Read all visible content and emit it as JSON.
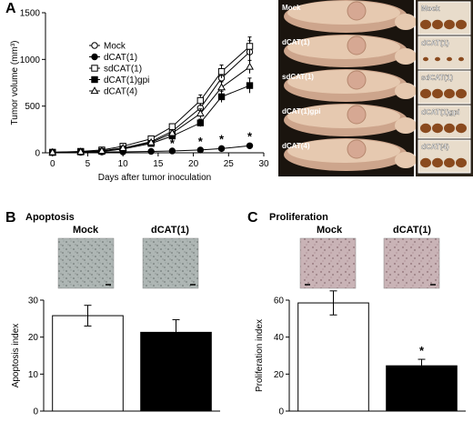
{
  "figure": {
    "panel_a": {
      "letter": "A",
      "photo_labels_left": [
        "Mock",
        "dCAT(1)",
        "sdCAT(1)",
        "dCAT(1)gpi",
        "dCAT(4)"
      ],
      "photo_labels_right": [
        "Mock",
        "dCAT(1)",
        "sdCAT(1)",
        "dCAT(1)gpi",
        "dCAT(4)"
      ]
    },
    "panel_b": {
      "letter": "B",
      "title": "Apoptosis",
      "micro_labels": [
        "Mock",
        "dCAT(1)"
      ]
    },
    "panel_c": {
      "letter": "C",
      "title": "Proliferation",
      "micro_labels": [
        "Mock",
        "dCAT(1)"
      ]
    }
  },
  "chart_data": [
    {
      "id": "tumor_volume",
      "type": "line",
      "xlabel": "Days after tumor inoculation",
      "ylabel": "Tumor volume (mm³)",
      "xlim": [
        -1,
        30
      ],
      "ylim": [
        0,
        1500
      ],
      "xticks": [
        0,
        5,
        10,
        15,
        20,
        25,
        30
      ],
      "yticks": [
        0,
        500,
        1000,
        1500
      ],
      "x": [
        0,
        4,
        7,
        10,
        14,
        17,
        21,
        24,
        28
      ],
      "legend_position": "upper-left",
      "series": [
        {
          "name": "Mock",
          "marker": "circle-open",
          "values": [
            5,
            10,
            20,
            50,
            120,
            230,
            480,
            800,
            1080
          ],
          "err": [
            0,
            0,
            0,
            10,
            20,
            30,
            60,
            80,
            120
          ]
        },
        {
          "name": "dCAT(1)",
          "marker": "circle-filled",
          "values": [
            5,
            5,
            8,
            10,
            15,
            20,
            30,
            45,
            75
          ],
          "err": [
            0,
            0,
            0,
            0,
            0,
            0,
            5,
            5,
            10
          ]
        },
        {
          "name": "sdCAT(1)",
          "marker": "square-open",
          "values": [
            5,
            15,
            30,
            70,
            150,
            280,
            560,
            870,
            1140
          ],
          "err": [
            0,
            0,
            0,
            10,
            20,
            30,
            60,
            70,
            100
          ]
        },
        {
          "name": "dCAT(1)gpi",
          "marker": "square-filled",
          "values": [
            5,
            10,
            15,
            40,
            100,
            180,
            320,
            600,
            720
          ],
          "err": [
            0,
            0,
            0,
            10,
            15,
            25,
            40,
            60,
            80
          ]
        },
        {
          "name": "dCAT(4)",
          "marker": "triangle-open",
          "values": [
            5,
            10,
            20,
            50,
            110,
            210,
            420,
            700,
            920
          ],
          "err": [
            0,
            0,
            0,
            10,
            15,
            25,
            50,
            60,
            70
          ]
        }
      ],
      "annotations": [
        {
          "x": 17,
          "y": 60,
          "text": "*"
        },
        {
          "x": 21,
          "y": 80,
          "text": "*"
        },
        {
          "x": 24,
          "y": 100,
          "text": "*"
        },
        {
          "x": 28,
          "y": 130,
          "text": "*"
        }
      ]
    },
    {
      "id": "apoptosis",
      "type": "bar",
      "ylabel": "Apoptosis index",
      "ylim": [
        0,
        30
      ],
      "yticks": [
        0,
        10,
        20,
        30
      ],
      "categories": [
        "Mock",
        "dCAT(1)"
      ],
      "values": [
        25.8,
        21.3
      ],
      "err": [
        2.8,
        3.4
      ],
      "fills": [
        "#ffffff",
        "#000000"
      ]
    },
    {
      "id": "proliferation",
      "type": "bar",
      "ylabel": "Proliferation index",
      "ylim": [
        0,
        60
      ],
      "yticks": [
        0,
        20,
        40,
        60
      ],
      "categories": [
        "Mock",
        "dCAT(1)"
      ],
      "values": [
        58.5,
        24.5
      ],
      "err": [
        6.5,
        3.5
      ],
      "fills": [
        "#ffffff",
        "#000000"
      ],
      "annotations": [
        {
          "category": "dCAT(1)",
          "text": "*"
        }
      ]
    }
  ],
  "colors": {
    "photo_bg": "#1a140e",
    "mouse_light": "#e6c9b0",
    "mouse_mid": "#cda58c",
    "tumor": "#8a4a1e",
    "micro_bc_tint": "#a9b2b0",
    "micro_c_tint": "#c6aeb2"
  }
}
